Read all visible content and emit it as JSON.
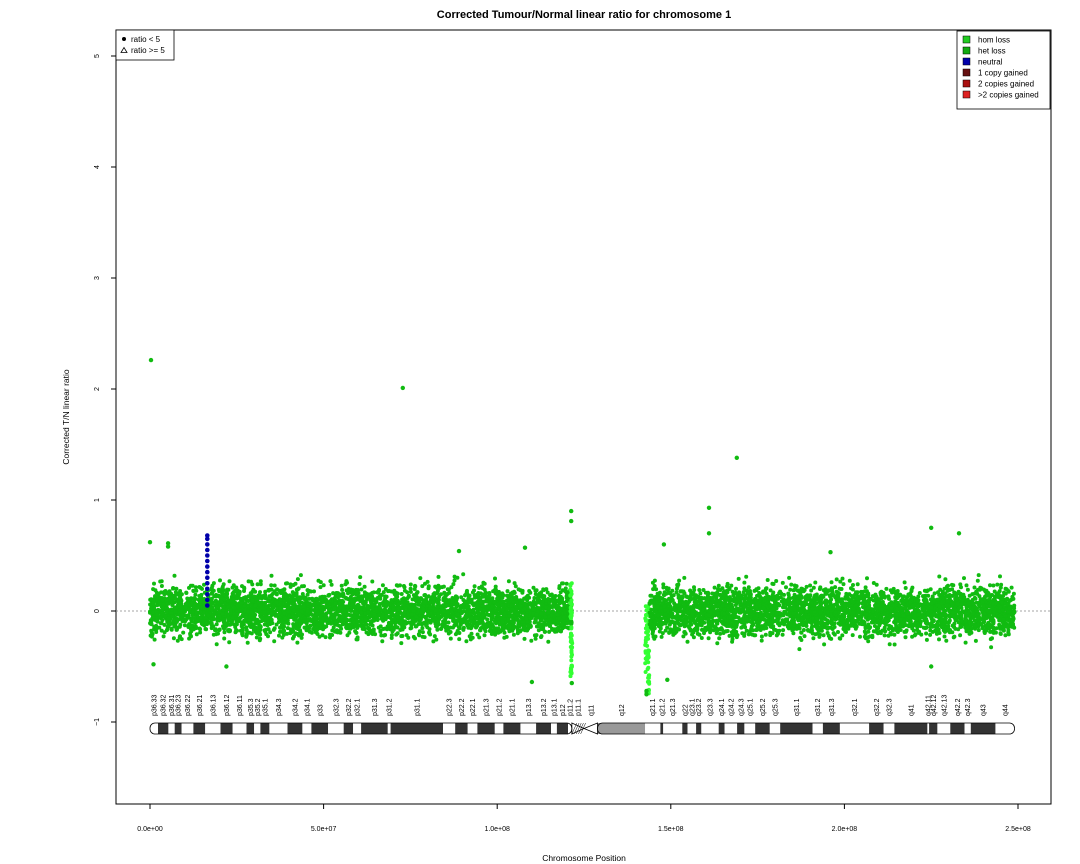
{
  "chart_data": {
    "type": "scatter",
    "title": "Corrected Tumour/Normal linear ratio for chromosome  1",
    "xlabel": "Chromosome Position",
    "ylabel": "Corrected T/N linear ratio",
    "xlim": [
      -20000000,
      258000000
    ],
    "ylim": [
      -1.8,
      5.3
    ],
    "x_ticks": [
      0,
      50000000,
      100000000,
      150000000,
      200000000,
      250000000
    ],
    "x_tick_labels": [
      "0.0e+00",
      "5.0e+07",
      "1.0e+08",
      "1.5e+08",
      "2.0e+08",
      "2.5e+08"
    ],
    "y_ticks": [
      -1,
      0,
      1,
      2,
      3,
      4,
      5
    ],
    "y_tick_labels": [
      "−1",
      "0",
      "1",
      "2",
      "3",
      "4",
      "5"
    ],
    "reference_line_y": 0,
    "shape_legend": {
      "position": "top-left",
      "items": [
        {
          "symbol": "circle",
          "label": "ratio < 5"
        },
        {
          "symbol": "triangle",
          "label": "ratio >= 5"
        }
      ]
    },
    "state_legend": {
      "position": "top-right",
      "items": [
        {
          "label": "hom loss",
          "color": "#22cc22"
        },
        {
          "label": "het loss",
          "color": "#11aa11"
        },
        {
          "label": "neutral",
          "color": "#0000aa"
        },
        {
          "label": "1 copy gained",
          "color": "#661111"
        },
        {
          "label": "2 copies gained",
          "color": "#aa1111"
        },
        {
          "label": ">2 copies gained",
          "color": "#dd2222"
        }
      ]
    },
    "point_color_main": "#11bb11",
    "point_color_light": "#33ff33",
    "point_color_neutral": "#0000aa",
    "segments": [
      {
        "state": "het loss",
        "x_start": 0,
        "x_end": 121500000,
        "center": 0.0,
        "spread": 0.11
      },
      {
        "state": "hom loss",
        "x_start": 142600000,
        "x_end": 143800000,
        "center": -0.35,
        "spread": 0.15
      },
      {
        "state": "het loss",
        "x_start": 143800000,
        "x_end": 249000000,
        "center": 0.0,
        "spread": 0.11
      }
    ],
    "neutral_points": [
      [
        16500000,
        0.05
      ],
      [
        16500000,
        0.1
      ],
      [
        16500000,
        0.15
      ],
      [
        16500000,
        0.2
      ],
      [
        16500000,
        0.25
      ],
      [
        16500000,
        0.3
      ],
      [
        16500000,
        0.35
      ],
      [
        16500000,
        0.4
      ],
      [
        16500000,
        0.45
      ],
      [
        16500000,
        0.5
      ],
      [
        16500000,
        0.55
      ],
      [
        16500000,
        0.6
      ],
      [
        16500000,
        0.65
      ],
      [
        16500000,
        0.68
      ]
    ],
    "outliers": [
      [
        300000,
        2.26
      ],
      [
        72800000,
        2.01
      ],
      [
        169000000,
        1.38
      ],
      [
        161000000,
        0.93
      ],
      [
        121300000,
        0.9
      ],
      [
        121300000,
        0.81
      ],
      [
        225000000,
        0.75
      ],
      [
        233000000,
        0.7
      ],
      [
        161000000,
        0.7
      ],
      [
        0,
        0.62
      ],
      [
        5200000,
        0.61
      ],
      [
        5200000,
        0.58
      ],
      [
        148000000,
        0.6
      ],
      [
        108000000,
        0.57
      ],
      [
        196000000,
        0.53
      ],
      [
        89000000,
        0.54
      ],
      [
        110000000,
        -0.64
      ],
      [
        143000000,
        -0.72
      ],
      [
        143000000,
        -0.75
      ],
      [
        149000000,
        -0.62
      ],
      [
        225000000,
        -0.5
      ],
      [
        22000000,
        -0.5
      ],
      [
        1000000,
        -0.48
      ],
      [
        121500000,
        -0.65
      ]
    ],
    "ideogram": {
      "y": -1.05,
      "centromere_bp": [
        121500000,
        125000000
      ],
      "heterochromatin_bp": [
        125000000,
        142600000
      ],
      "bands": [
        {
          "name": "p36.33",
          "start": 0,
          "end": 2300000,
          "stain": "gneg"
        },
        {
          "name": "p36.32",
          "start": 2300000,
          "end": 5300000,
          "stain": "gpos"
        },
        {
          "name": "p36.31",
          "start": 5300000,
          "end": 7100000,
          "stain": "gneg"
        },
        {
          "name": "p36.23",
          "start": 7100000,
          "end": 9100000,
          "stain": "gpos"
        },
        {
          "name": "p36.22",
          "start": 9100000,
          "end": 12500000,
          "stain": "gneg"
        },
        {
          "name": "p36.21",
          "start": 12500000,
          "end": 15900000,
          "stain": "gpos"
        },
        {
          "name": "p36.13",
          "start": 15900000,
          "end": 20300000,
          "stain": "gneg"
        },
        {
          "name": "p36.12",
          "start": 20300000,
          "end": 23800000,
          "stain": "gpos"
        },
        {
          "name": "p36.11",
          "start": 23800000,
          "end": 27800000,
          "stain": "gneg"
        },
        {
          "name": "p35.3",
          "start": 27800000,
          "end": 30000000,
          "stain": "gpos"
        },
        {
          "name": "p35.2",
          "start": 30000000,
          "end": 31800000,
          "stain": "gneg"
        },
        {
          "name": "p35.1",
          "start": 31800000,
          "end": 34400000,
          "stain": "gpos"
        },
        {
          "name": "p34.3",
          "start": 34400000,
          "end": 39600000,
          "stain": "gneg"
        },
        {
          "name": "p34.2",
          "start": 39600000,
          "end": 43900000,
          "stain": "gpos"
        },
        {
          "name": "p34.1",
          "start": 43900000,
          "end": 46500000,
          "stain": "gneg"
        },
        {
          "name": "p33",
          "start": 46500000,
          "end": 51300000,
          "stain": "gpos"
        },
        {
          "name": "p32.3",
          "start": 51300000,
          "end": 55800000,
          "stain": "gneg"
        },
        {
          "name": "p32.2",
          "start": 55800000,
          "end": 58500000,
          "stain": "gpos"
        },
        {
          "name": "p32.1",
          "start": 58500000,
          "end": 60800000,
          "stain": "gneg"
        },
        {
          "name": "p31.3",
          "start": 60800000,
          "end": 68500000,
          "stain": "gpos"
        },
        {
          "name": "p31.2",
          "start": 68500000,
          "end": 69300000,
          "stain": "gneg"
        },
        {
          "name": "p31.1",
          "start": 69300000,
          "end": 84400000,
          "stain": "gpos"
        },
        {
          "name": "p22.3",
          "start": 84400000,
          "end": 87900000,
          "stain": "gneg"
        },
        {
          "name": "p22.2",
          "start": 87900000,
          "end": 91500000,
          "stain": "gpos"
        },
        {
          "name": "p22.1",
          "start": 91500000,
          "end": 94300000,
          "stain": "gneg"
        },
        {
          "name": "p21.3",
          "start": 94300000,
          "end": 99300000,
          "stain": "gpos"
        },
        {
          "name": "p21.2",
          "start": 99300000,
          "end": 101800000,
          "stain": "gneg"
        },
        {
          "name": "p21.1",
          "start": 101800000,
          "end": 106700000,
          "stain": "gpos"
        },
        {
          "name": "p13.3",
          "start": 106700000,
          "end": 111200000,
          "stain": "gneg"
        },
        {
          "name": "p13.2",
          "start": 111200000,
          "end": 115500000,
          "stain": "gpos"
        },
        {
          "name": "p13.1",
          "start": 115500000,
          "end": 117200000,
          "stain": "gneg"
        },
        {
          "name": "p12",
          "start": 117200000,
          "end": 120400000,
          "stain": "gpos"
        },
        {
          "name": "p11.2",
          "start": 120400000,
          "end": 121500000,
          "stain": "gneg"
        },
        {
          "name": "p11.1",
          "start": 121500000,
          "end": 125000000,
          "stain": "acen"
        },
        {
          "name": "q11",
          "start": 125000000,
          "end": 128900000,
          "stain": "acen"
        },
        {
          "name": "q12",
          "start": 128900000,
          "end": 142600000,
          "stain": "gvar"
        },
        {
          "name": "q21.1",
          "start": 142600000,
          "end": 147000000,
          "stain": "gneg"
        },
        {
          "name": "q21.2",
          "start": 147000000,
          "end": 147800000,
          "stain": "gpos"
        },
        {
          "name": "q21.3",
          "start": 147800000,
          "end": 153300000,
          "stain": "gneg"
        },
        {
          "name": "q22",
          "start": 153300000,
          "end": 154800000,
          "stain": "gpos"
        },
        {
          "name": "q23.1",
          "start": 154800000,
          "end": 157300000,
          "stain": "gneg"
        },
        {
          "name": "q23.2",
          "start": 157300000,
          "end": 158800000,
          "stain": "gpos"
        },
        {
          "name": "q23.3",
          "start": 158800000,
          "end": 163800000,
          "stain": "gneg"
        },
        {
          "name": "q24.1",
          "start": 163800000,
          "end": 165500000,
          "stain": "gpos"
        },
        {
          "name": "q24.2",
          "start": 165500000,
          "end": 169100000,
          "stain": "gneg"
        },
        {
          "name": "q24.3",
          "start": 169100000,
          "end": 171200000,
          "stain": "gpos"
        },
        {
          "name": "q25.1",
          "start": 171200000,
          "end": 174300000,
          "stain": "gneg"
        },
        {
          "name": "q25.2",
          "start": 174300000,
          "end": 178500000,
          "stain": "gpos"
        },
        {
          "name": "q25.3",
          "start": 178500000,
          "end": 181500000,
          "stain": "gneg"
        },
        {
          "name": "q31.1",
          "start": 181500000,
          "end": 190800000,
          "stain": "gpos"
        },
        {
          "name": "q31.2",
          "start": 190800000,
          "end": 193800000,
          "stain": "gneg"
        },
        {
          "name": "q31.3",
          "start": 193800000,
          "end": 198700000,
          "stain": "gpos"
        },
        {
          "name": "q32.1",
          "start": 198700000,
          "end": 207100000,
          "stain": "gneg"
        },
        {
          "name": "q32.2",
          "start": 207100000,
          "end": 211300000,
          "stain": "gpos"
        },
        {
          "name": "q32.3",
          "start": 211300000,
          "end": 214400000,
          "stain": "gneg"
        },
        {
          "name": "q41",
          "start": 214400000,
          "end": 223900000,
          "stain": "gpos"
        },
        {
          "name": "q42.11",
          "start": 223900000,
          "end": 224400000,
          "stain": "gneg"
        },
        {
          "name": "q42.12",
          "start": 224400000,
          "end": 226800000,
          "stain": "gpos"
        },
        {
          "name": "q42.13",
          "start": 226800000,
          "end": 230500000,
          "stain": "gneg"
        },
        {
          "name": "q42.2",
          "start": 230500000,
          "end": 234600000,
          "stain": "gpos"
        },
        {
          "name": "q42.3",
          "start": 234600000,
          "end": 236400000,
          "stain": "gneg"
        },
        {
          "name": "q43",
          "start": 236400000,
          "end": 243500000,
          "stain": "gpos"
        },
        {
          "name": "q44",
          "start": 243500000,
          "end": 249000000,
          "stain": "gneg"
        }
      ]
    }
  }
}
